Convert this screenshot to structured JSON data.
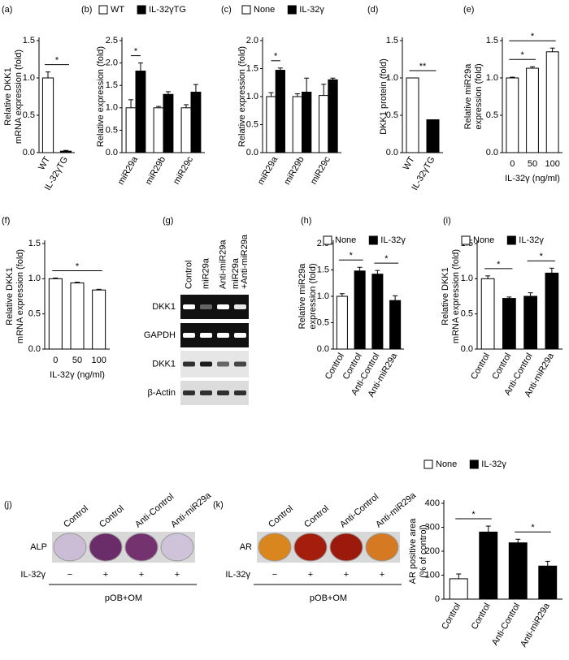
{
  "chart_data": [
    {
      "type": "bar",
      "label": "(a)",
      "ylabel": [
        "Relative DKK1",
        "mRNA expression (fold)"
      ],
      "categories": [
        "WT",
        "IL-32γTG"
      ],
      "values": [
        1.0,
        0.02
      ],
      "errors": [
        0.08,
        0.01
      ],
      "colors": [
        "#ffffff",
        "#000000"
      ],
      "ylim": [
        0,
        1.5
      ],
      "yticks": [
        {
          "value": 0,
          "label": "0.0"
        },
        {
          "value": 0.5,
          "label": "0.5"
        },
        {
          "value": 1,
          "label": "1.0"
        },
        {
          "value": 1.5,
          "label": "1.5"
        }
      ],
      "rotate_labels": true,
      "significance": [
        {
          "between": [
            0,
            1
          ],
          "label": "*"
        }
      ]
    },
    {
      "type": "bar",
      "label": "(b)",
      "ylabel": [
        "Relative expression (fold)"
      ],
      "categories": [
        "miR29a",
        "miR29b",
        "miR29c"
      ],
      "series": [
        {
          "name": "WT",
          "color": "#ffffff",
          "values": [
            1.0,
            1.0,
            1.0
          ],
          "errors": [
            0.18,
            0.03,
            0.07
          ]
        },
        {
          "name": "IL-32γTG",
          "color": "#000000",
          "values": [
            1.82,
            1.3,
            1.35
          ],
          "errors": [
            0.18,
            0.06,
            0.17
          ]
        }
      ],
      "ylim": [
        0,
        2.5
      ],
      "yticks": [
        {
          "value": 0,
          "label": "0.0"
        },
        {
          "value": 0.5,
          "label": "0.5"
        },
        {
          "value": 1,
          "label": "1.0"
        },
        {
          "value": 1.5,
          "label": "1.5"
        },
        {
          "value": 2,
          "label": "2.0"
        },
        {
          "value": 2.5,
          "label": "2.5"
        }
      ],
      "rotate_labels": true,
      "significance": [
        {
          "category": 0,
          "label": "*"
        }
      ]
    },
    {
      "type": "bar",
      "label": "(c)",
      "ylabel": [
        "Relative expression (fold)"
      ],
      "categories": [
        "miR29a",
        "miR29b",
        "miR29c"
      ],
      "series": [
        {
          "name": "None",
          "color": "#ffffff",
          "values": [
            1.0,
            1.0,
            1.02
          ],
          "errors": [
            0.07,
            0.05,
            0.2
          ]
        },
        {
          "name": "IL-32γ",
          "color": "#000000",
          "values": [
            1.47,
            1.08,
            1.3
          ],
          "errors": [
            0.04,
            0.25,
            0.03
          ]
        }
      ],
      "ylim": [
        0,
        2.0
      ],
      "yticks": [
        {
          "value": 0,
          "label": "0.0"
        },
        {
          "value": 0.5,
          "label": "0.5"
        },
        {
          "value": 1,
          "label": "1.0"
        },
        {
          "value": 1.5,
          "label": "1.5"
        },
        {
          "value": 2,
          "label": "2.0"
        }
      ],
      "rotate_labels": true,
      "significance": [
        {
          "category": 0,
          "label": "*"
        }
      ]
    },
    {
      "type": "bar",
      "label": "(d)",
      "ylabel": [
        "DKK1 protein (fold)"
      ],
      "categories": [
        "WT",
        "IL-32γTG"
      ],
      "values": [
        1.0,
        0.44
      ],
      "colors": [
        "#ffffff",
        "#000000"
      ],
      "ylim": [
        0,
        1.5
      ],
      "yticks": [
        {
          "value": 0,
          "label": "0.0"
        },
        {
          "value": 0.5,
          "label": "0.5"
        },
        {
          "value": 1,
          "label": "1.0"
        },
        {
          "value": 1.5,
          "label": "1.5"
        }
      ],
      "rotate_labels": true,
      "significance": [
        {
          "between": [
            0,
            1
          ],
          "label": "**"
        }
      ]
    },
    {
      "type": "bar",
      "label": "(e)",
      "ylabel": [
        "Relative miR29a",
        "expression (fold)"
      ],
      "xlabel": "IL-32γ (ng/ml)",
      "categories": [
        "0",
        "50",
        "100"
      ],
      "values": [
        1.0,
        1.13,
        1.35
      ],
      "errors": [
        0.01,
        0.02,
        0.05
      ],
      "colors": [
        "#ffffff",
        "#ffffff",
        "#ffffff"
      ],
      "ylim": [
        0,
        1.5
      ],
      "yticks": [
        {
          "value": 0,
          "label": "0.0"
        },
        {
          "value": 0.5,
          "label": "0.5"
        },
        {
          "value": 1,
          "label": "1.0"
        },
        {
          "value": 1.5,
          "label": "1.5"
        }
      ],
      "rotate_labels": false,
      "significance": [
        {
          "between": [
            0,
            1
          ],
          "label": "*"
        },
        {
          "between": [
            0,
            2
          ],
          "label": "*"
        }
      ]
    },
    {
      "type": "bar",
      "label": "(f)",
      "ylabel": [
        "Relative DKK1",
        "mRNA expression (fold)"
      ],
      "xlabel": "IL-32γ (ng/ml)",
      "categories": [
        "0",
        "50",
        "100"
      ],
      "values": [
        1.0,
        0.94,
        0.84
      ],
      "errors": [
        0.01,
        0.01,
        0.01
      ],
      "colors": [
        "#ffffff",
        "#ffffff",
        "#ffffff"
      ],
      "ylim": [
        0,
        1.5
      ],
      "yticks": [
        {
          "value": 0,
          "label": "0.0"
        },
        {
          "value": 0.5,
          "label": "0.5"
        },
        {
          "value": 1,
          "label": "1.0"
        },
        {
          "value": 1.5,
          "label": "1.5"
        }
      ],
      "rotate_labels": false,
      "significance": [
        {
          "between": [
            0,
            2
          ],
          "label": "*"
        }
      ]
    },
    {
      "type": "bar",
      "label": "(h)",
      "ylabel": [
        "Relative miR29a",
        "expression (fold)"
      ],
      "categories": [
        "Control",
        "Control",
        "Anti-Control",
        "Anti-miR29a"
      ],
      "values": [
        1.0,
        1.48,
        1.42,
        0.92
      ],
      "errors": [
        0.05,
        0.07,
        0.07,
        0.09
      ],
      "colors": [
        "#ffffff",
        "#000000",
        "#000000",
        "#000000"
      ],
      "legend": [
        {
          "name": "None",
          "color": "#ffffff"
        },
        {
          "name": "IL-32γ",
          "color": "#000000"
        }
      ],
      "ylim": [
        0,
        2.0
      ],
      "yticks": [
        {
          "value": 0,
          "label": "0.0"
        },
        {
          "value": 0.5,
          "label": "0.5"
        },
        {
          "value": 1,
          "label": "1.0"
        },
        {
          "value": 1.5,
          "label": "1.5"
        },
        {
          "value": 2,
          "label": "2.0"
        }
      ],
      "rotate_labels": true,
      "significance": [
        {
          "between": [
            0,
            1
          ],
          "label": "*"
        },
        {
          "between": [
            2,
            3
          ],
          "label": "*"
        }
      ]
    },
    {
      "type": "bar",
      "label": "(i)",
      "ylabel": [
        "Relative DKK1",
        "mRNA expression (fold)"
      ],
      "categories": [
        "Control",
        "Control",
        "Anti-Control",
        "Anti-miR29a"
      ],
      "values": [
        1.0,
        0.72,
        0.75,
        1.08
      ],
      "errors": [
        0.04,
        0.02,
        0.05,
        0.07
      ],
      "colors": [
        "#ffffff",
        "#000000",
        "#000000",
        "#000000"
      ],
      "legend": [
        {
          "name": "None",
          "color": "#ffffff"
        },
        {
          "name": "IL-32γ",
          "color": "#000000"
        }
      ],
      "ylim": [
        0,
        1.5
      ],
      "yticks": [
        {
          "value": 0,
          "label": "0.0"
        },
        {
          "value": 0.5,
          "label": "0.5"
        },
        {
          "value": 1,
          "label": "1.0"
        },
        {
          "value": 1.5,
          "label": "1.5"
        }
      ],
      "rotate_labels": true,
      "significance": [
        {
          "between": [
            0,
            1
          ],
          "label": "*"
        },
        {
          "between": [
            2,
            3
          ],
          "label": "*"
        }
      ]
    },
    {
      "type": "bar",
      "ylabel": [
        "AR positive area",
        "(% of control)"
      ],
      "categories": [
        "Control",
        "Control",
        "Anti-Control",
        "Anti-miR29a"
      ],
      "values": [
        85,
        280,
        235,
        138
      ],
      "errors": [
        20,
        25,
        15,
        20
      ],
      "colors": [
        "#ffffff",
        "#000000",
        "#000000",
        "#000000"
      ],
      "legend": [
        {
          "name": "None",
          "color": "#ffffff"
        },
        {
          "name": "IL-32γ",
          "color": "#000000"
        }
      ],
      "ylim": [
        0,
        400
      ],
      "yticks": [
        0,
        100,
        200,
        300,
        400
      ],
      "rotate_labels": true,
      "significance": [
        {
          "between": [
            0,
            1
          ],
          "label": "*"
        },
        {
          "between": [
            2,
            3
          ],
          "label": "*"
        }
      ]
    }
  ],
  "blot": {
    "label": "(g)",
    "lanes": [
      [
        "Control"
      ],
      [
        "miR29a"
      ],
      [
        "Anti-miR29a"
      ],
      [
        "miR29a",
        "+Anti-miR29a"
      ]
    ],
    "rows": [
      "DKK1",
      "GAPDH",
      "DKK1",
      "β-Actin"
    ]
  },
  "plates": [
    {
      "label": "(j)",
      "stain": "ALP",
      "lanes": [
        "Control",
        "Control",
        "Anti-Control",
        "Anti-miR29a"
      ],
      "treatment": "IL-32γ",
      "signs": [
        "−",
        "+",
        "+",
        "+"
      ],
      "condition": "pOB+OM"
    },
    {
      "label": "(k)",
      "stain": "AR",
      "lanes": [
        "Control",
        "Control",
        "Anti-Control",
        "Anti-miR29a"
      ],
      "treatment": "IL-32γ",
      "signs": [
        "−",
        "+",
        "+",
        "+"
      ],
      "condition": "pOB+OM"
    }
  ]
}
